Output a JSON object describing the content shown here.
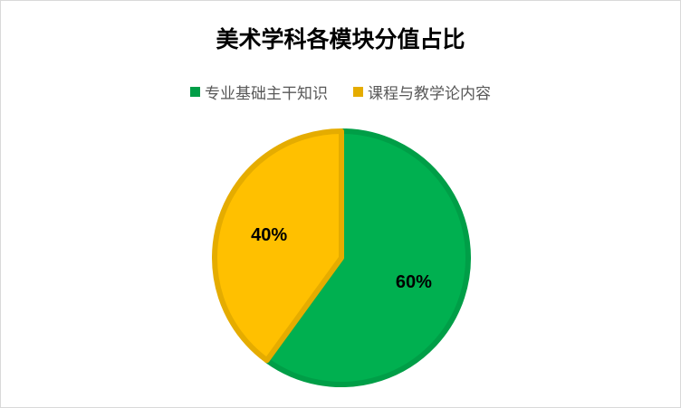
{
  "chart_data": {
    "type": "pie",
    "title": "美术学科各模块分值占比",
    "categories": [
      "专业基础主干知识",
      "课程与教学论内容"
    ],
    "values": [
      60,
      40
    ],
    "data_labels": [
      "60%",
      "40%"
    ],
    "colors": [
      "#00B050",
      "#FFC000"
    ],
    "border_colors": [
      "#009E47",
      "#E5AC00"
    ],
    "legend_position": "top"
  }
}
